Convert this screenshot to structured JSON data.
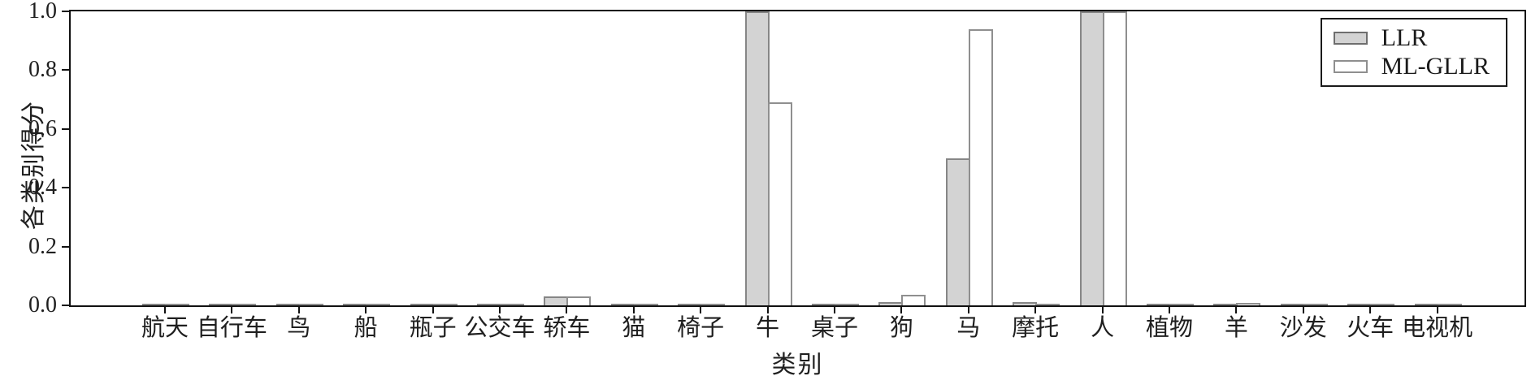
{
  "figure": {
    "background": "#ffffff",
    "text_color": "#1f1f1f"
  },
  "chart_data": {
    "type": "bar",
    "title": "",
    "xlabel": "类别",
    "ylabel": "各类别得分",
    "ylim": [
      0.0,
      1.0
    ],
    "yticks": [
      "0.0",
      "0.2",
      "0.4",
      "0.6",
      "0.8",
      "1.0"
    ],
    "grid": false,
    "legend_position": "upper right",
    "categories": [
      "航天",
      "自行车",
      "鸟",
      "船",
      "瓶子",
      "公交车",
      "轿车",
      "猫",
      "椅子",
      "牛",
      "桌子",
      "狗",
      "马",
      "摩托",
      "人",
      "植物",
      "羊",
      "沙发",
      "火车",
      "电视机"
    ],
    "series": [
      {
        "name": "LLR",
        "fill": "#d3d3d3",
        "edge": "#868686",
        "values": [
          0.003,
          0.004,
          0.003,
          0.004,
          0.003,
          0.004,
          0.03,
          0.003,
          0.005,
          1.0,
          0.004,
          0.012,
          0.5,
          0.012,
          1.0,
          0.003,
          0.004,
          0.003,
          0.003,
          0.003
        ]
      },
      {
        "name": "ML-GLLR",
        "fill": "#ffffff",
        "edge": "#8f8f8f",
        "values": [
          0.004,
          0.004,
          0.005,
          0.004,
          0.003,
          0.003,
          0.03,
          0.003,
          0.003,
          0.69,
          0.003,
          0.035,
          0.94,
          0.006,
          1.0,
          0.006,
          0.008,
          0.003,
          0.005,
          0.004
        ]
      }
    ]
  }
}
